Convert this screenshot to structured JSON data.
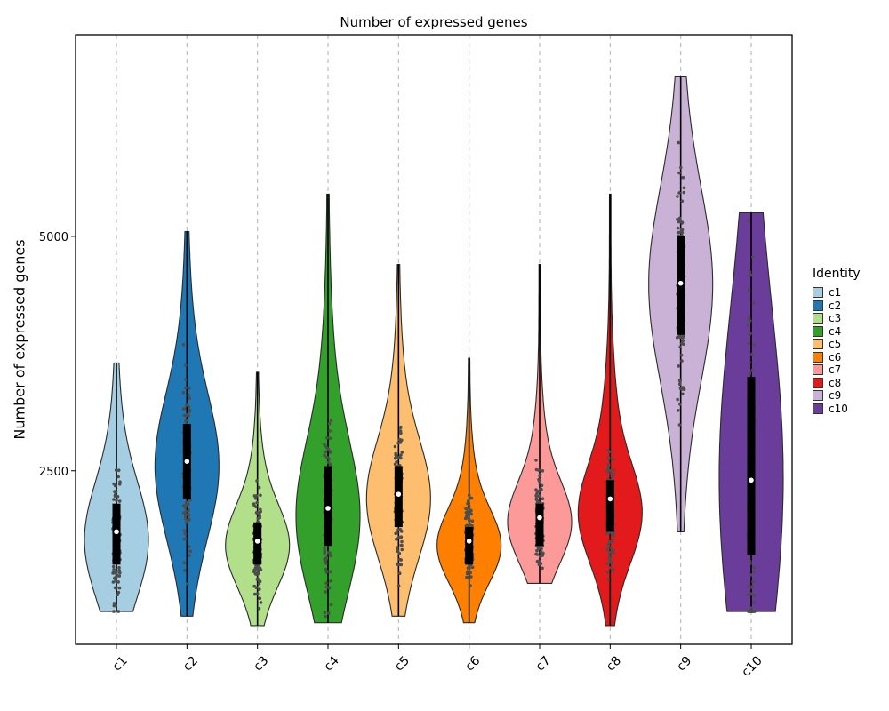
{
  "chart_data": {
    "type": "violin",
    "title": "Number of expressed genes",
    "xlabel": "",
    "ylabel": "Number of expressed genes",
    "categories": [
      "c1",
      "c2",
      "c3",
      "c4",
      "c5",
      "c6",
      "c7",
      "c8",
      "c9",
      "c10"
    ],
    "y_ticks": [
      2500,
      5000
    ],
    "ylim": [
      650,
      7150
    ],
    "legend": {
      "title": "Identity",
      "placement": "right"
    },
    "grid": {
      "vertical_dashed": true,
      "horizontal": false
    },
    "colors": [
      "#A6CEE3",
      "#1F78B4",
      "#B2DF8A",
      "#33A02C",
      "#FDBF6F",
      "#FF7F00",
      "#FB9A99",
      "#E31A1C",
      "#CAB2D6",
      "#6A3D9A"
    ],
    "series": [
      {
        "name": "c1",
        "min": 1000,
        "max": 3650,
        "q1": 1500,
        "median": 1750,
        "q3": 2150,
        "mean": 1850
      },
      {
        "name": "c2",
        "min": 950,
        "max": 5050,
        "q1": 2200,
        "median": 2550,
        "q3": 3000,
        "mean": 2600
      },
      {
        "name": "c3",
        "min": 850,
        "max": 3550,
        "q1": 1500,
        "median": 1700,
        "q3": 1950,
        "mean": 1750
      },
      {
        "name": "c4",
        "min": 880,
        "max": 5450,
        "q1": 1700,
        "median": 2000,
        "q3": 2550,
        "mean": 2100
      },
      {
        "name": "c5",
        "min": 950,
        "max": 4700,
        "q1": 1900,
        "median": 2200,
        "q3": 2550,
        "mean": 2250
      },
      {
        "name": "c6",
        "min": 880,
        "max": 3700,
        "q1": 1500,
        "median": 1700,
        "q3": 1900,
        "mean": 1750
      },
      {
        "name": "c7",
        "min": 1300,
        "max": 4700,
        "q1": 1700,
        "median": 1950,
        "q3": 2150,
        "mean": 2000
      },
      {
        "name": "c8",
        "min": 850,
        "max": 5450,
        "q1": 1850,
        "median": 2050,
        "q3": 2400,
        "mean": 2200
      },
      {
        "name": "c9",
        "min": 1850,
        "max": 6700,
        "q1": 3950,
        "median": 4500,
        "q3": 5000,
        "mean": 4500
      },
      {
        "name": "c10",
        "min": 1000,
        "max": 5250,
        "q1": 1600,
        "median": 2400,
        "q3": 3500,
        "mean": 2400
      }
    ]
  }
}
